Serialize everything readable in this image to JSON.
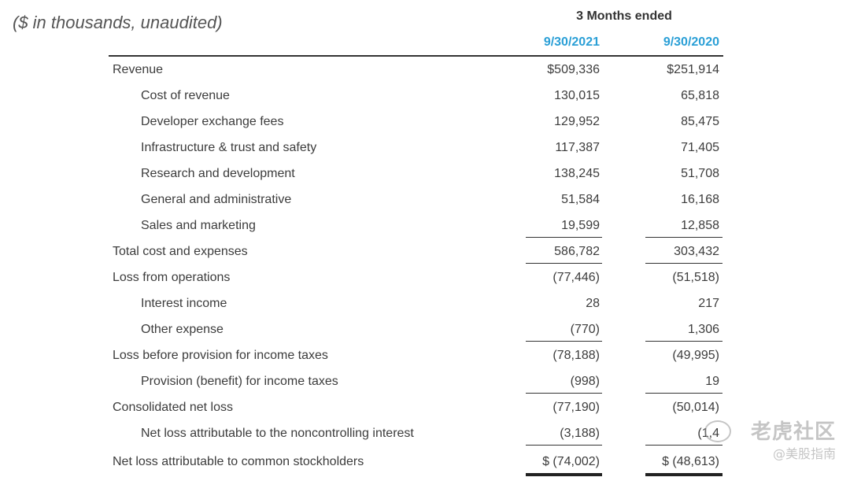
{
  "header": {
    "subtitle": "($ in thousands,  unaudited)",
    "period": "3 Months ended",
    "col1": "9/30/2021",
    "col2": "9/30/2020"
  },
  "rows": [
    {
      "label": "Revenue",
      "indent": 0,
      "v1": "$509,336",
      "v2": "$251,914"
    },
    {
      "label": "Cost of revenue",
      "indent": 1,
      "v1": "130,015",
      "v2": "65,818"
    },
    {
      "label": "Developer exchange fees",
      "indent": 1,
      "v1": "129,952",
      "v2": "85,475"
    },
    {
      "label": "Infrastructure & trust and safety",
      "indent": 1,
      "v1": "117,387",
      "v2": "71,405"
    },
    {
      "label": "Research and development",
      "indent": 1,
      "v1": "138,245",
      "v2": "51,708"
    },
    {
      "label": "General and administrative",
      "indent": 1,
      "v1": "51,584",
      "v2": "16,168"
    },
    {
      "label": "Sales and marketing",
      "indent": 1,
      "v1": "19,599",
      "v2": "12,858"
    },
    {
      "label": "Total cost and expenses",
      "indent": 0,
      "v1": "586,782",
      "v2": "303,432"
    },
    {
      "label": "Loss from operations",
      "indent": 0,
      "v1": "(77,446)",
      "v2": "(51,518)"
    },
    {
      "label": "Interest income",
      "indent": 1,
      "v1": "28",
      "v2": "217"
    },
    {
      "label": "Other expense",
      "indent": 1,
      "v1": "(770)",
      "v2": "1,306"
    },
    {
      "label": "Loss before provision for income taxes",
      "indent": 0,
      "v1": "(78,188)",
      "v2": "(49,995)"
    },
    {
      "label": "Provision (benefit) for income taxes",
      "indent": 1,
      "v1": "(998)",
      "v2": "19"
    },
    {
      "label": "Consolidated net loss",
      "indent": 0,
      "v1": "(77,190)",
      "v2": "(50,014)"
    },
    {
      "label": "Net loss attributable to the noncontrolling interest",
      "indent": 1,
      "v1": "(3,188)",
      "v2": "(1,4"
    },
    {
      "label": "Net loss attributable to common stockholders",
      "indent": 0,
      "v1": "$ (74,002)",
      "v2": "$ (48,613)"
    }
  ],
  "watermark": {
    "line1": "老虎社区",
    "line1b": "美股指南",
    "line2": "@美股指南"
  }
}
